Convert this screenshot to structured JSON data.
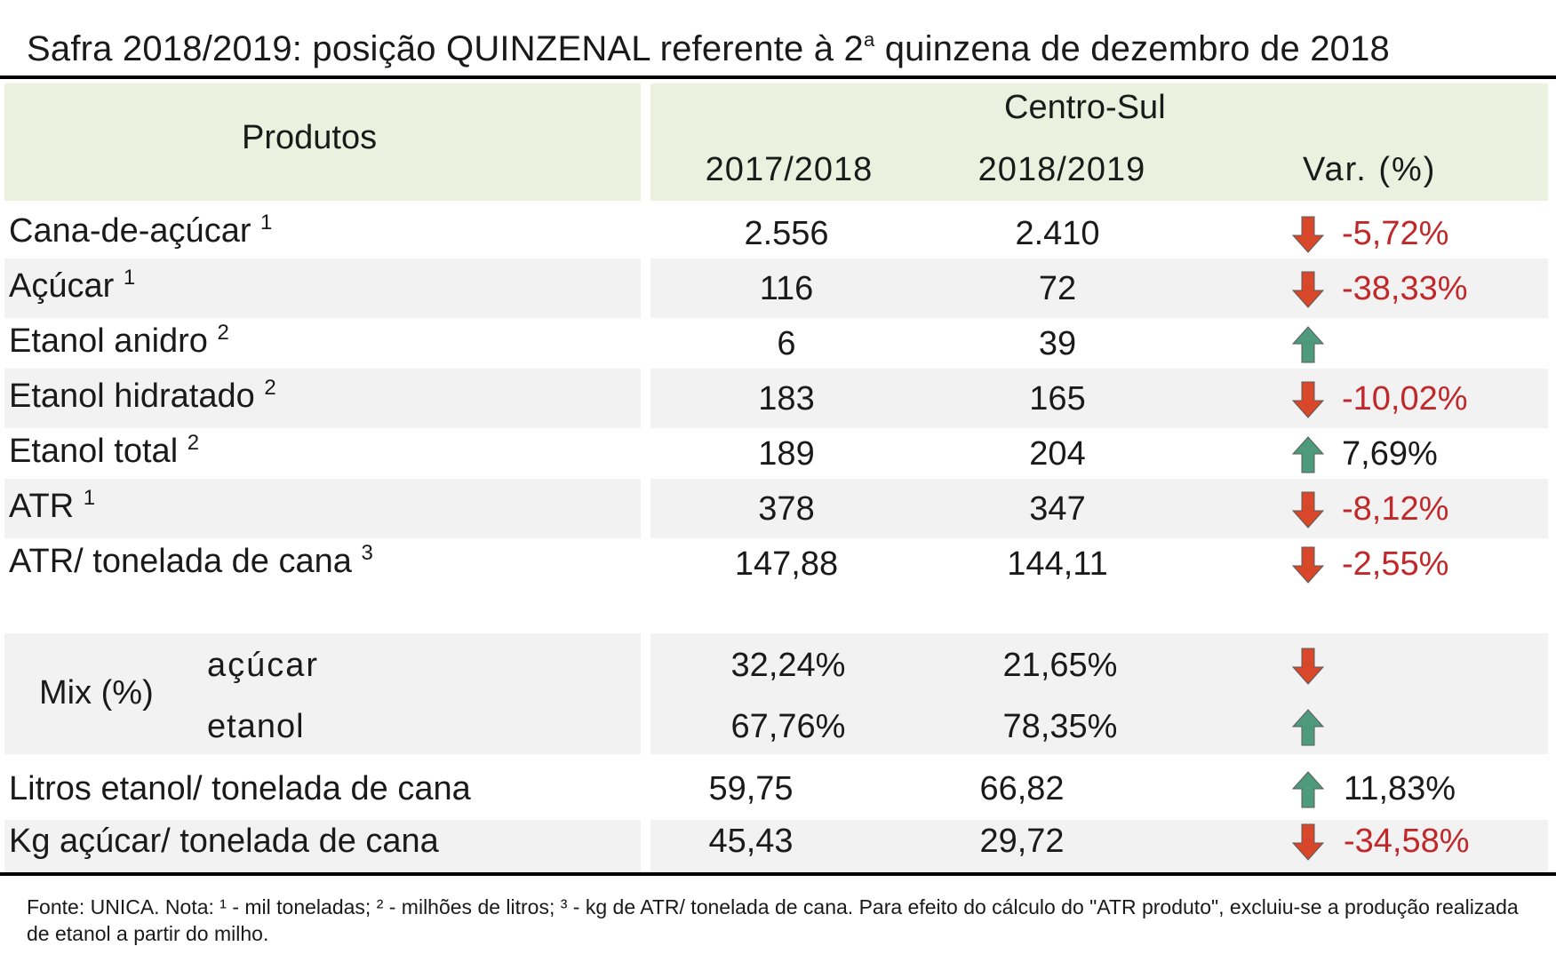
{
  "title": {
    "main": "Safra 2018/2019: posição QUINZENAL referente à 2",
    "sup": "a",
    "tail": " quinzena de dezembro de 2018"
  },
  "header": {
    "produtos": "Produtos",
    "region": "Centro-Sul",
    "col1": "2017/2018",
    "col2": "2018/2019",
    "col3": "Var. (%)"
  },
  "rows": [
    {
      "label": "Cana-de-açúcar",
      "note": "1",
      "v1": "2.556",
      "v2": "2.410",
      "dir": "down",
      "var": "-5,72%"
    },
    {
      "label": "Açúcar",
      "note": "1",
      "v1": "116",
      "v2": "72",
      "dir": "down",
      "var": "-38,33%"
    },
    {
      "label": "Etanol anidro",
      "note": "2",
      "v1": "6",
      "v2": "39",
      "dir": "up",
      "var": ""
    },
    {
      "label": "Etanol hidratado",
      "note": "2",
      "v1": "183",
      "v2": "165",
      "dir": "down",
      "var": "-10,02%"
    },
    {
      "label": "Etanol total",
      "note": "2",
      "v1": "189",
      "v2": "204",
      "dir": "up",
      "var": "7,69%"
    },
    {
      "label": "ATR",
      "note": "1",
      "v1": "378",
      "v2": "347",
      "dir": "down",
      "var": "-8,12%"
    },
    {
      "label": "ATR/ tonelada de cana",
      "note": "3",
      "v1": "147,88",
      "v2": "144,11",
      "dir": "down",
      "var": "-2,55%"
    }
  ],
  "mix": {
    "label": "Mix (%)",
    "acucar": {
      "label": "açúcar",
      "v1": "32,24%",
      "v2": "21,65%",
      "dir": "down"
    },
    "etanol": {
      "label": "etanol",
      "v1": "67,76%",
      "v2": "78,35%",
      "dir": "up"
    }
  },
  "rows2": [
    {
      "label": "Litros etanol/ tonelada de cana",
      "v1": "59,75",
      "v2": "66,82",
      "dir": "up",
      "var": "11,83%"
    },
    {
      "label": "Kg açúcar/ tonelada de cana",
      "v1": "45,43",
      "v2": "29,72",
      "dir": "down",
      "var": "-34,58%"
    }
  ],
  "footnote": "Fonte: UNICA. Nota: ¹ - mil toneladas; ² - milhões de litros; ³ - kg de ATR/ tonelada de cana. Para efeito do cálculo do \"ATR produto\", excluiu-se a produção realizada de etanol a partir do milho.",
  "colors": {
    "up_arrow": "#4e9a7c",
    "down_arrow": "#d9472b",
    "negative_text": "#c0282a",
    "header_bg": "#ebf1de",
    "band_bg": "#f2f2f2"
  }
}
